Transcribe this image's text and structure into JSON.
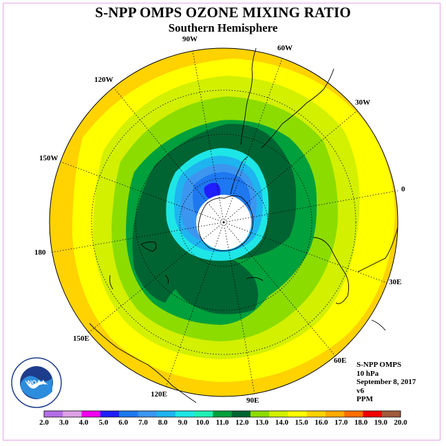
{
  "title": "S-NPP OMPS OZONE MIXING RATIO",
  "subtitle": "Southern Hemisphere",
  "longitude_labels": {
    "lon_0": "0",
    "lon_30w": "30W",
    "lon_60w": "60W",
    "lon_90w": "90W",
    "lon_120w": "120W",
    "lon_150w": "150W",
    "lon_180": "180",
    "lon_150e": "150E",
    "lon_120e": "120E",
    "lon_90e": "90E",
    "lon_60e": "60E",
    "lon_30e": "30E"
  },
  "info": {
    "instrument": "S-NPP OMPS",
    "level": "10 hPa",
    "date": "September 8, 2017",
    "version": "v6",
    "units": "PPM"
  },
  "logo_text": "NOAA",
  "colorbar": {
    "ticks": [
      "2.0",
      "3.0",
      "4.0",
      "5.0",
      "6.0",
      "7.0",
      "8.0",
      "9.0",
      "10.0",
      "11.0",
      "12.0",
      "13.0",
      "14.0",
      "15.0",
      "16.0",
      "17.0",
      "18.0",
      "19.0",
      "20.0"
    ],
    "colors": [
      "#b46ee6",
      "#dca0e6",
      "#f000f0",
      "#1e1eff",
      "#1e78f0",
      "#3c96f0",
      "#1eb4f0",
      "#1ee6e6",
      "#1ef0b4",
      "#00a03c",
      "#006432",
      "#8cdc00",
      "#d2f000",
      "#ffff00",
      "#ffd200",
      "#ffaa00",
      "#ff6e00",
      "#f00000",
      "#a05a3c"
    ]
  },
  "field_colors": {
    "center_no_data": "#ffffff",
    "lt_5": "#1e1eff",
    "c6_7": "#1e78f0",
    "c7_8": "#3c96f0",
    "c8_9": "#1eb4f0",
    "c9_10": "#1ee6e6",
    "c10_11": "#00a03c",
    "c11_12": "#006432",
    "c12_13": "#8cdc00",
    "c13_14": "#d2f000",
    "c14_15": "#ffff00",
    "c15_16": "#ffd200",
    "c16_17": "#ffaa00",
    "c17_18": "#ff6e00"
  }
}
